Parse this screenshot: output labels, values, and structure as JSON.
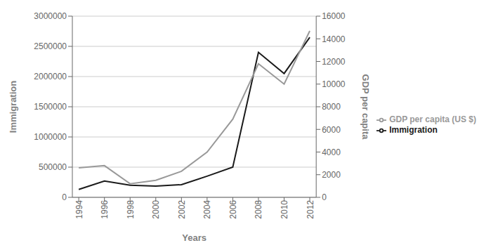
{
  "chart_data": {
    "type": "line",
    "xlabel": "Years",
    "ylabel": "Immigration",
    "y2label": "GDP per capita",
    "x": [
      1994,
      1996,
      1998,
      2000,
      2002,
      2004,
      2006,
      2008,
      2010,
      2012
    ],
    "series": [
      {
        "name": "Immigration",
        "color": "#1a1a1a",
        "values": [
          130000,
          270000,
          200000,
          185000,
          210000,
          350000,
          500000,
          2400000,
          2050000,
          2650000
        ]
      },
      {
        "name": "GDP per capita (US $)",
        "color": "#999999",
        "axis": "y2",
        "values": [
          2600,
          2800,
          1200,
          1500,
          2300,
          4000,
          6900,
          11800,
          10000,
          14700
        ]
      }
    ],
    "xlim": [
      1993.5,
      2012.5
    ],
    "xticks": [
      1994,
      1996,
      1998,
      2000,
      2002,
      2004,
      2006,
      2008,
      2010,
      2012
    ],
    "ylim": [
      0,
      3000000
    ],
    "yticks": [
      0,
      500000,
      1000000,
      1500000,
      2000000,
      2500000,
      3000000
    ],
    "y2lim": [
      0,
      16000
    ],
    "y2ticks": [
      0,
      2000,
      4000,
      6000,
      8000,
      10000,
      12000,
      14000,
      16000
    ],
    "grid": "y",
    "legend": "right"
  }
}
